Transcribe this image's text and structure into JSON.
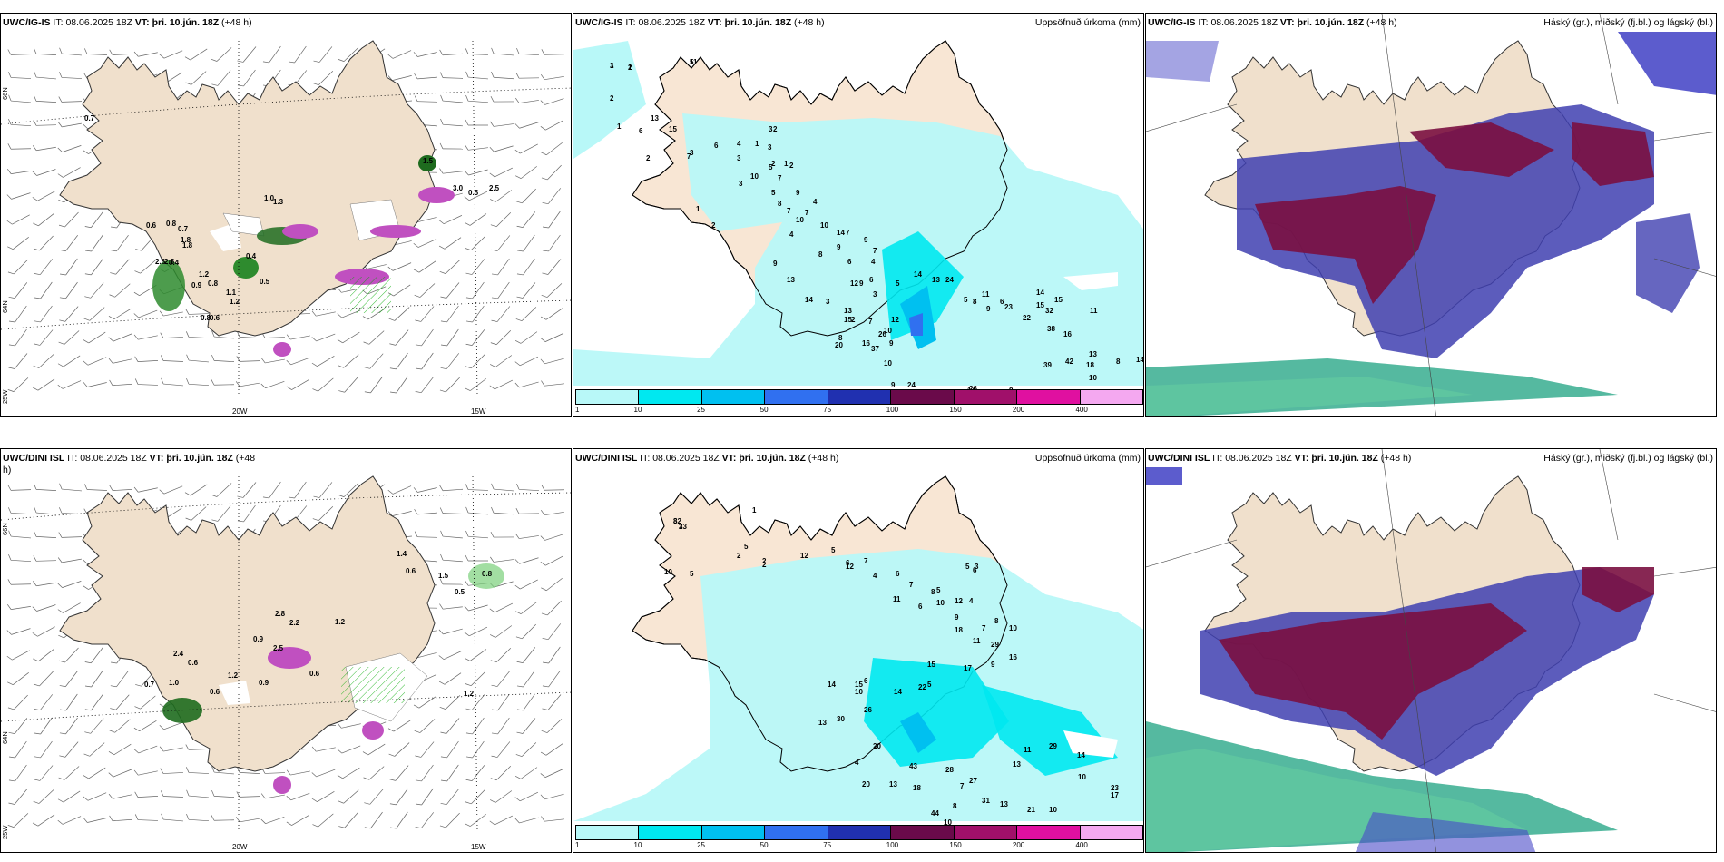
{
  "rows": [
    {
      "model": "UWC/IG-IS",
      "precip_model": "UWC/IG-IS",
      "it_label": "IT:",
      "it_value": "08.06.2025 18Z",
      "vt_label": "VT:",
      "vt_value": "þri. 10.jún. 18Z",
      "lead": "(+48 h)"
    },
    {
      "model": "UWC/DINI ISL",
      "precip_model": "UWC/DINI ISL",
      "it_label": "IT:",
      "it_value": "08.06.2025 18Z",
      "vt_label": "VT:",
      "vt_value": "þri. 10.jún. 18Z",
      "lead": "(+48",
      "lead_wrap": "h)",
      "lead_full": "(+48 h)"
    }
  ],
  "precip_title": "Uppsöfnuð úrkoma (mm)",
  "cloud_title": "Háský (gr.), miðský (fj.bl.) og lágský (bl.)",
  "axes": {
    "lat_66": "66N",
    "lat_64": "64N",
    "lat_25w": "25W",
    "lon_20": "20W",
    "lon_15": "15W"
  },
  "colorbar": {
    "labels": [
      "1",
      "10",
      "25",
      "50",
      "75",
      "100",
      "150",
      "200",
      "400"
    ],
    "colors": [
      "#b8f8f8",
      "#00e8f0",
      "#00c0f0",
      "#3070f0",
      "#2030b0",
      "#6a0a4a",
      "#a0106a",
      "#e010a0",
      "#f4a8f0"
    ]
  },
  "precip_numbers_top": [
    "3",
    "1",
    "11",
    "2",
    "1",
    "13",
    "15",
    "6",
    "2",
    "7",
    "6",
    "3",
    "5",
    "4",
    "2",
    "1",
    "3",
    "3",
    "3",
    "2",
    "4",
    "1",
    "3",
    "2",
    "1",
    "2",
    "10",
    "7",
    "5",
    "8",
    "9",
    "4",
    "7",
    "7",
    "10",
    "10",
    "14",
    "7",
    "9",
    "9",
    "7",
    "4",
    "6",
    "6",
    "12",
    "3",
    "7",
    "9",
    "5",
    "8",
    "9",
    "13",
    "14",
    "3",
    "2",
    "8",
    "20",
    "16",
    "26",
    "12",
    "10",
    "15",
    "37",
    "9",
    "10",
    "13",
    "14",
    "13",
    "24",
    "5",
    "8",
    "11",
    "6",
    "9",
    "23",
    "22",
    "14",
    "15",
    "32",
    "15",
    "38",
    "16",
    "13",
    "39",
    "42",
    "11",
    "18",
    "10",
    "8",
    "14",
    "9",
    "24",
    "26",
    "14",
    "8",
    "16",
    "4",
    "4",
    "1",
    "2",
    "5"
  ],
  "precip_numbers_bottom": [
    "8",
    "2",
    "2",
    "10",
    "5",
    "1",
    "5",
    "2",
    "2",
    "12",
    "5",
    "6",
    "7",
    "4",
    "12",
    "6",
    "11",
    "7",
    "6",
    "8",
    "5",
    "3",
    "6",
    "4",
    "12",
    "5",
    "10",
    "9",
    "18",
    "11",
    "29",
    "8",
    "7",
    "10",
    "16",
    "9",
    "17",
    "15",
    "5",
    "22",
    "14",
    "6",
    "15",
    "14",
    "10",
    "26",
    "13",
    "30",
    "4",
    "20",
    "13",
    "18",
    "20",
    "43",
    "28",
    "27",
    "31",
    "44",
    "10",
    "8",
    "7",
    "13",
    "21",
    "10",
    "13",
    "11",
    "29",
    "14",
    "10",
    "23",
    "17",
    "32",
    "33"
  ],
  "wind_numbers_top": [
    "0.7",
    "0.6",
    "0.8",
    "1.8",
    "1.0",
    "1.3",
    "0.7",
    "1.8",
    "2.6",
    "0.4",
    "2.5",
    "1.2",
    "0.9",
    "0.8",
    "0.5",
    "0.4",
    "1.1",
    "1.2",
    "0.8",
    "0.6",
    "1.5",
    "3.0",
    "0.5",
    "2.5"
  ],
  "wind_numbers_bottom": [
    "1.4",
    "0.6",
    "0.8",
    "1.5",
    "0.5",
    "2.8",
    "2.2",
    "1.2",
    "2.4",
    "0.6",
    "0.9",
    "2.5",
    "1.2",
    "0.6",
    "0.9",
    "0.7",
    "1.0",
    "0.6",
    "1.2"
  ]
}
